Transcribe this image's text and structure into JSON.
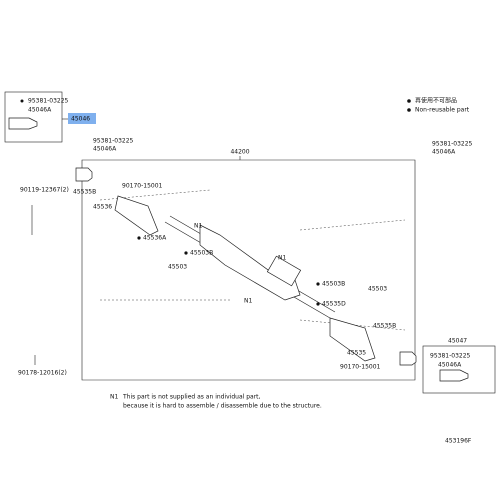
{
  "legend": [
    "再使用不可部品",
    "Non-reusable part"
  ],
  "labels": [
    "95381-03225",
    "45046A",
    "45046",
    "95381-03225",
    "45046A",
    "44200",
    "95381-03225",
    "45046A",
    "90119-12367(2)",
    "45535B",
    "90170-15001",
    "45536",
    "45536A",
    "N1",
    "45503B",
    "45503",
    "N1",
    "45503B",
    "45503",
    "45535D",
    "N1",
    "45535B",
    "45535",
    "90170-15001",
    "45047",
    "95381-03225",
    "45046A",
    "90178-12016(2)"
  ],
  "note": {
    "mark": "N1",
    "lines": [
      "This part is not supplied as an individual part,",
      "because it is hard to assemble / disassemble due to the structure."
    ]
  },
  "code": "453196F"
}
